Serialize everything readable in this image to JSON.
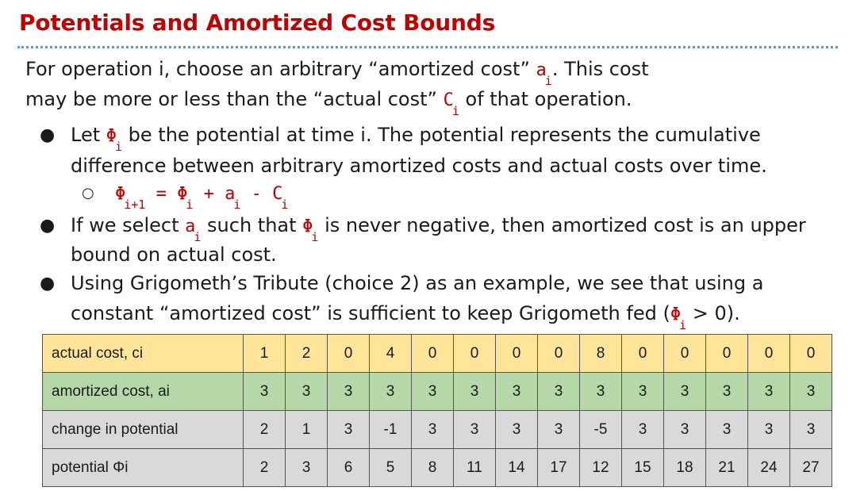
{
  "title": "Potentials and Amortized Cost Bounds",
  "intro": {
    "l1_a": "For operation i, choose an arbitrary “amortized cost” ",
    "l1_var": "a",
    "l1_sub": "i",
    "l1_b": ". This cost",
    "l2_a": "may be more or less than the “actual cost” ",
    "l2_var": "C",
    "l2_sub": "i",
    "l2_b": " of that operation."
  },
  "bullets": {
    "b1": {
      "l1_a": "Let ",
      "l1_var": "Φ",
      "l1_sub": "i",
      "l1_b": " be the potential at time i. The potential represents the cumulative",
      "l2": "difference between arbitrary amortized costs and actual costs over time.",
      "formula": {
        "p1": "Φ",
        "p1_sub": "i+1",
        "p2": " = Φ",
        "p2_sub": "i",
        "p3": " + a",
        "p3_sub": "i",
        "p4": " - C",
        "p4_sub": "i"
      }
    },
    "b2": {
      "l1_a": "If we select ",
      "l1_var": "a",
      "l1_sub": "i",
      "l1_b": " such that ",
      "l1_var2": "Φ",
      "l1_sub2": "i",
      "l1_c": " is never negative, then amortized cost is an upper",
      "l2": "bound on actual cost."
    },
    "b3": {
      "l1": "Using Grigometh’s Tribute (choice 2) as an example, we see that using  a",
      "l2_a": "constant “amortized cost” is sufficient to keep Grigometh fed (",
      "l2_var": "Φ",
      "l2_sub": "i",
      "l2_b": " > 0)."
    }
  },
  "table": {
    "rows": [
      {
        "label": "actual cost, ci",
        "values": [
          "1",
          "2",
          "0",
          "4",
          "0",
          "0",
          "0",
          "0",
          "8",
          "0",
          "0",
          "0",
          "0",
          "0"
        ]
      },
      {
        "label": "amortized cost, ai",
        "values": [
          "3",
          "3",
          "3",
          "3",
          "3",
          "3",
          "3",
          "3",
          "3",
          "3",
          "3",
          "3",
          "3",
          "3"
        ]
      },
      {
        "label": "change in potential",
        "values": [
          "2",
          "1",
          "3",
          "-1",
          "3",
          "3",
          "3",
          "3",
          "-5",
          "3",
          "3",
          "3",
          "3",
          "3"
        ]
      },
      {
        "label": "potential Φi",
        "values": [
          "2",
          "3",
          "6",
          "5",
          "8",
          "11",
          "14",
          "17",
          "12",
          "15",
          "18",
          "21",
          "24",
          "27"
        ]
      }
    ]
  }
}
